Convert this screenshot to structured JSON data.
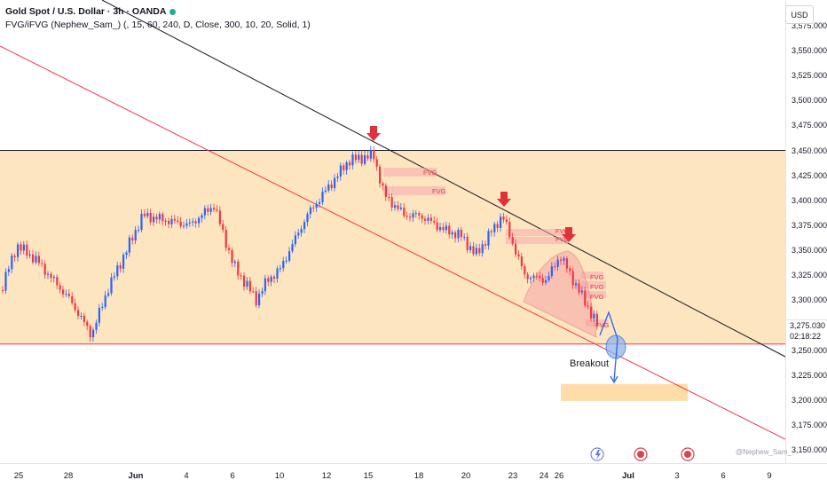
{
  "header": {
    "symbol": "Gold Spot / U.S. Dollar · 3h · OANDA",
    "indicator": "FVG/iFVG (Nephew_Sam_) (, 15, 60, 240, D, Close, 300, 10, 20, Solid, 1)"
  },
  "currency_button": "USD",
  "current_price": "3,275.030",
  "countdown": "02:18:22",
  "annotation_breakout": "Breakout",
  "fvg_label": "FVG",
  "watermark": "@Nephew_Sam_",
  "colors": {
    "up": "#2962ff",
    "down": "#f23645",
    "zone": "#fde3b8",
    "target": "#ffd699",
    "channel": "#f23645",
    "trend": "#131722"
  },
  "chart_data": {
    "type": "candlestick",
    "title": "Gold Spot / U.S. Dollar · 3h · OANDA",
    "ylim": [
      3140,
      3580
    ],
    "y_ticks": [
      "3,575.000",
      "3,550.000",
      "3,525.000",
      "3,500.000",
      "3,475.000",
      "3,450.000",
      "3,425.000",
      "3,400.000",
      "3,375.000",
      "3,350.000",
      "3,325.000",
      "3,300.000",
      "3,275.000",
      "3,250.000",
      "3,225.000",
      "3,200.000",
      "3,175.000",
      "3,150.000"
    ],
    "x_ticks": [
      "25",
      "28",
      "Jun",
      "4",
      "6",
      "10",
      "12",
      "15",
      "18",
      "20",
      "23",
      "24",
      "26",
      "Jul",
      "3",
      "6",
      "9"
    ],
    "grid": false,
    "horizontal_lines": [
      3450,
      3256
    ],
    "supply_zone": {
      "top": 3450,
      "bottom": 3256
    },
    "target_zone": {
      "top": 3216,
      "bottom": 3199
    },
    "price_path": [
      {
        "date": "May 23",
        "price": 3310
      },
      {
        "date": "May 24",
        "price": 3355
      },
      {
        "date": "May 26",
        "price": 3340
      },
      {
        "date": "May 28",
        "price": 3300
      },
      {
        "date": "May 29",
        "price": 3265
      },
      {
        "date": "May 30",
        "price": 3310
      },
      {
        "date": "Jun 2",
        "price": 3385
      },
      {
        "date": "Jun 4",
        "price": 3375
      },
      {
        "date": "Jun 5",
        "price": 3395
      },
      {
        "date": "Jun 6",
        "price": 3335
      },
      {
        "date": "Jun 9",
        "price": 3300
      },
      {
        "date": "Jun 10",
        "price": 3320
      },
      {
        "date": "Jun 11",
        "price": 3330
      },
      {
        "date": "Jun 12",
        "price": 3385
      },
      {
        "date": "Jun 13",
        "price": 3440
      },
      {
        "date": "Jun 15",
        "price": 3445
      },
      {
        "date": "Jun 16",
        "price": 3405
      },
      {
        "date": "Jun 17",
        "price": 3385
      },
      {
        "date": "Jun 18",
        "price": 3385
      },
      {
        "date": "Jun 19",
        "price": 3370
      },
      {
        "date": "Jun 20",
        "price": 3365
      },
      {
        "date": "Jun 22",
        "price": 3345
      },
      {
        "date": "Jun 23",
        "price": 3385
      },
      {
        "date": "Jun 24",
        "price": 3325
      },
      {
        "date": "Jun 25",
        "price": 3320
      },
      {
        "date": "Jun 26",
        "price": 3345
      },
      {
        "date": "Jun 27",
        "price": 3275
      }
    ],
    "markers": [
      {
        "date": "Jun 15",
        "type": "down-arrow"
      },
      {
        "date": "Jun 23",
        "type": "down-arrow"
      },
      {
        "date": "Jun 26",
        "type": "down-arrow"
      }
    ]
  }
}
